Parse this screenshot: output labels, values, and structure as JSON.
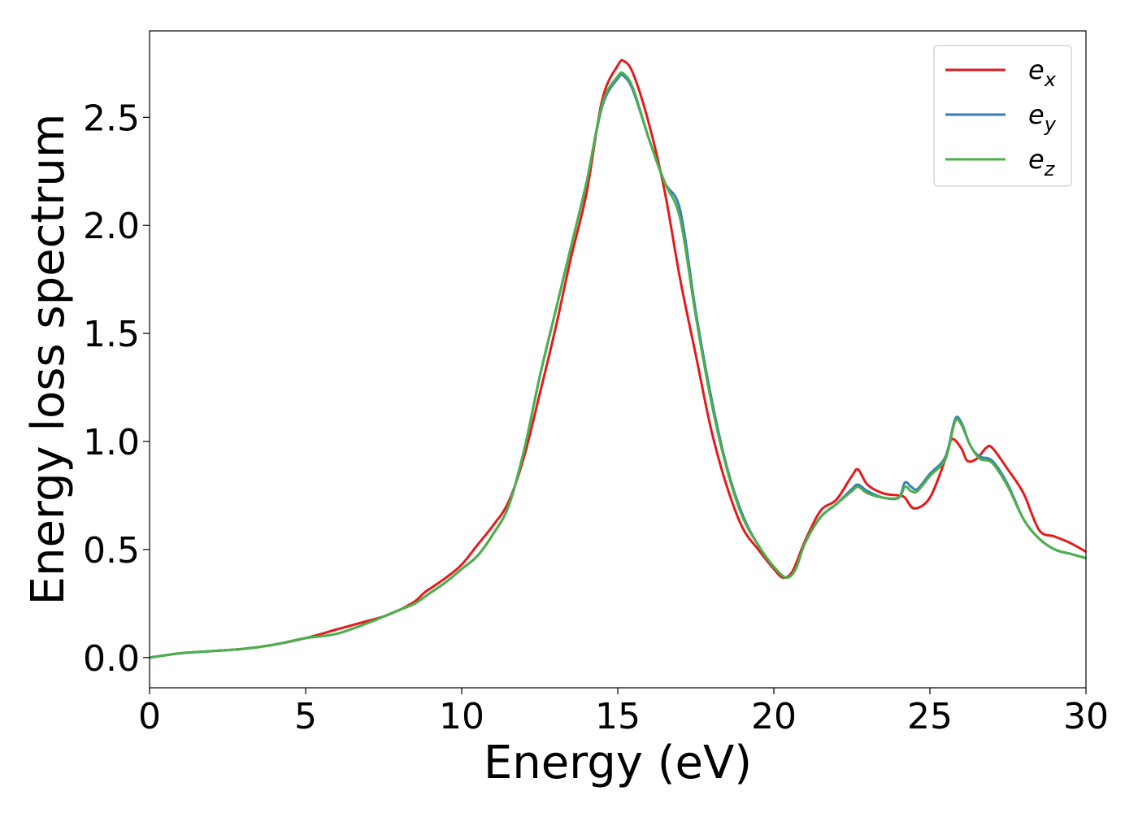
{
  "chart_data": {
    "type": "line",
    "title": "",
    "xlabel": "Energy (eV)",
    "ylabel": "Energy loss spectrum",
    "xlim": [
      0,
      30
    ],
    "ylim": [
      -0.14,
      2.9
    ],
    "xticks": [
      0,
      5,
      10,
      15,
      20,
      25,
      30
    ],
    "xtick_labels": [
      "0",
      "5",
      "10",
      "15",
      "20",
      "25",
      "30"
    ],
    "yticks": [
      0.0,
      0.5,
      1.0,
      1.5,
      2.0,
      2.5
    ],
    "ytick_labels": [
      "0.0",
      "0.5",
      "1.0",
      "1.5",
      "2.0",
      "2.5"
    ],
    "grid": false,
    "legend_position": "top-right",
    "series": [
      {
        "name": "e_x",
        "legend_base": "e",
        "legend_sub": "x",
        "color": "#e41a1c",
        "x": [
          0,
          1,
          2,
          3,
          4,
          5,
          6,
          7,
          7.5,
          8,
          8.5,
          8.8,
          9,
          9.5,
          10,
          10.5,
          11,
          11.5,
          12,
          12.5,
          13,
          13.5,
          14,
          14.5,
          15,
          15.2,
          15.5,
          16,
          16.5,
          17,
          17.5,
          18,
          18.5,
          19,
          19.5,
          20,
          20.3,
          20.6,
          21,
          21.5,
          22,
          22.5,
          22.7,
          23,
          23.5,
          24,
          24.2,
          24.5,
          25,
          25.5,
          25.7,
          26,
          26.2,
          26.5,
          26.8,
          27,
          27.5,
          28,
          28.5,
          29,
          29.5,
          30
        ],
        "y": [
          0.0,
          0.02,
          0.03,
          0.04,
          0.06,
          0.09,
          0.13,
          0.17,
          0.19,
          0.22,
          0.26,
          0.3,
          0.32,
          0.37,
          0.43,
          0.52,
          0.61,
          0.72,
          0.93,
          1.22,
          1.52,
          1.85,
          2.15,
          2.58,
          2.74,
          2.76,
          2.7,
          2.47,
          2.16,
          1.75,
          1.4,
          1.05,
          0.79,
          0.6,
          0.5,
          0.41,
          0.37,
          0.4,
          0.54,
          0.68,
          0.73,
          0.84,
          0.87,
          0.8,
          0.76,
          0.75,
          0.74,
          0.69,
          0.74,
          0.92,
          1.01,
          0.97,
          0.91,
          0.92,
          0.97,
          0.97,
          0.87,
          0.76,
          0.59,
          0.56,
          0.53,
          0.49
        ]
      },
      {
        "name": "e_y",
        "legend_base": "e",
        "legend_sub": "y",
        "color": "#377eb8",
        "x": [
          0,
          1,
          2,
          3,
          4,
          5,
          6,
          7,
          7.5,
          8,
          8.5,
          9,
          9.5,
          10,
          10.5,
          11,
          11.5,
          12,
          12.5,
          13,
          13.5,
          14,
          14.5,
          15,
          15.2,
          15.5,
          16,
          16.5,
          17,
          17.5,
          18,
          18.5,
          19,
          19.5,
          20,
          20.4,
          20.7,
          21,
          21.5,
          22,
          22.5,
          22.7,
          23,
          23.5,
          24,
          24.2,
          24.4,
          24.6,
          25,
          25.5,
          25.8,
          26,
          26.3,
          26.6,
          27,
          27.5,
          28,
          28.5,
          29,
          29.5,
          30
        ],
        "y": [
          0.0,
          0.02,
          0.03,
          0.04,
          0.06,
          0.09,
          0.11,
          0.16,
          0.19,
          0.22,
          0.25,
          0.3,
          0.35,
          0.41,
          0.47,
          0.57,
          0.7,
          0.96,
          1.3,
          1.6,
          1.9,
          2.2,
          2.55,
          2.68,
          2.69,
          2.62,
          2.4,
          2.2,
          2.07,
          1.6,
          1.2,
          0.88,
          0.66,
          0.52,
          0.42,
          0.37,
          0.41,
          0.53,
          0.65,
          0.71,
          0.78,
          0.8,
          0.77,
          0.74,
          0.74,
          0.81,
          0.79,
          0.78,
          0.85,
          0.93,
          1.1,
          1.09,
          0.98,
          0.93,
          0.91,
          0.8,
          0.64,
          0.55,
          0.5,
          0.48,
          0.46
        ]
      },
      {
        "name": "e_z",
        "legend_base": "e",
        "legend_sub": "z",
        "color": "#4daf4a",
        "x": [
          0,
          1,
          2,
          3,
          4,
          5,
          6,
          7,
          7.5,
          8,
          8.5,
          9,
          9.5,
          10,
          10.5,
          11,
          11.5,
          12,
          12.5,
          13,
          13.5,
          14,
          14.5,
          15,
          15.2,
          15.5,
          16,
          16.5,
          17,
          17.5,
          18,
          18.5,
          19,
          19.5,
          20,
          20.4,
          20.7,
          21,
          21.5,
          22,
          22.5,
          22.7,
          23,
          23.5,
          24,
          24.2,
          24.4,
          24.6,
          25,
          25.5,
          25.8,
          26,
          26.3,
          26.6,
          27,
          27.5,
          28,
          28.5,
          29,
          29.5,
          30
        ],
        "y": [
          0.0,
          0.02,
          0.03,
          0.04,
          0.06,
          0.09,
          0.11,
          0.16,
          0.19,
          0.22,
          0.25,
          0.3,
          0.35,
          0.41,
          0.47,
          0.57,
          0.7,
          0.96,
          1.3,
          1.6,
          1.9,
          2.2,
          2.56,
          2.69,
          2.7,
          2.63,
          2.4,
          2.2,
          2.03,
          1.58,
          1.18,
          0.87,
          0.65,
          0.52,
          0.42,
          0.37,
          0.41,
          0.53,
          0.65,
          0.71,
          0.77,
          0.79,
          0.76,
          0.74,
          0.74,
          0.79,
          0.77,
          0.77,
          0.84,
          0.92,
          1.09,
          1.08,
          0.98,
          0.92,
          0.9,
          0.79,
          0.64,
          0.55,
          0.5,
          0.48,
          0.46
        ]
      }
    ]
  }
}
